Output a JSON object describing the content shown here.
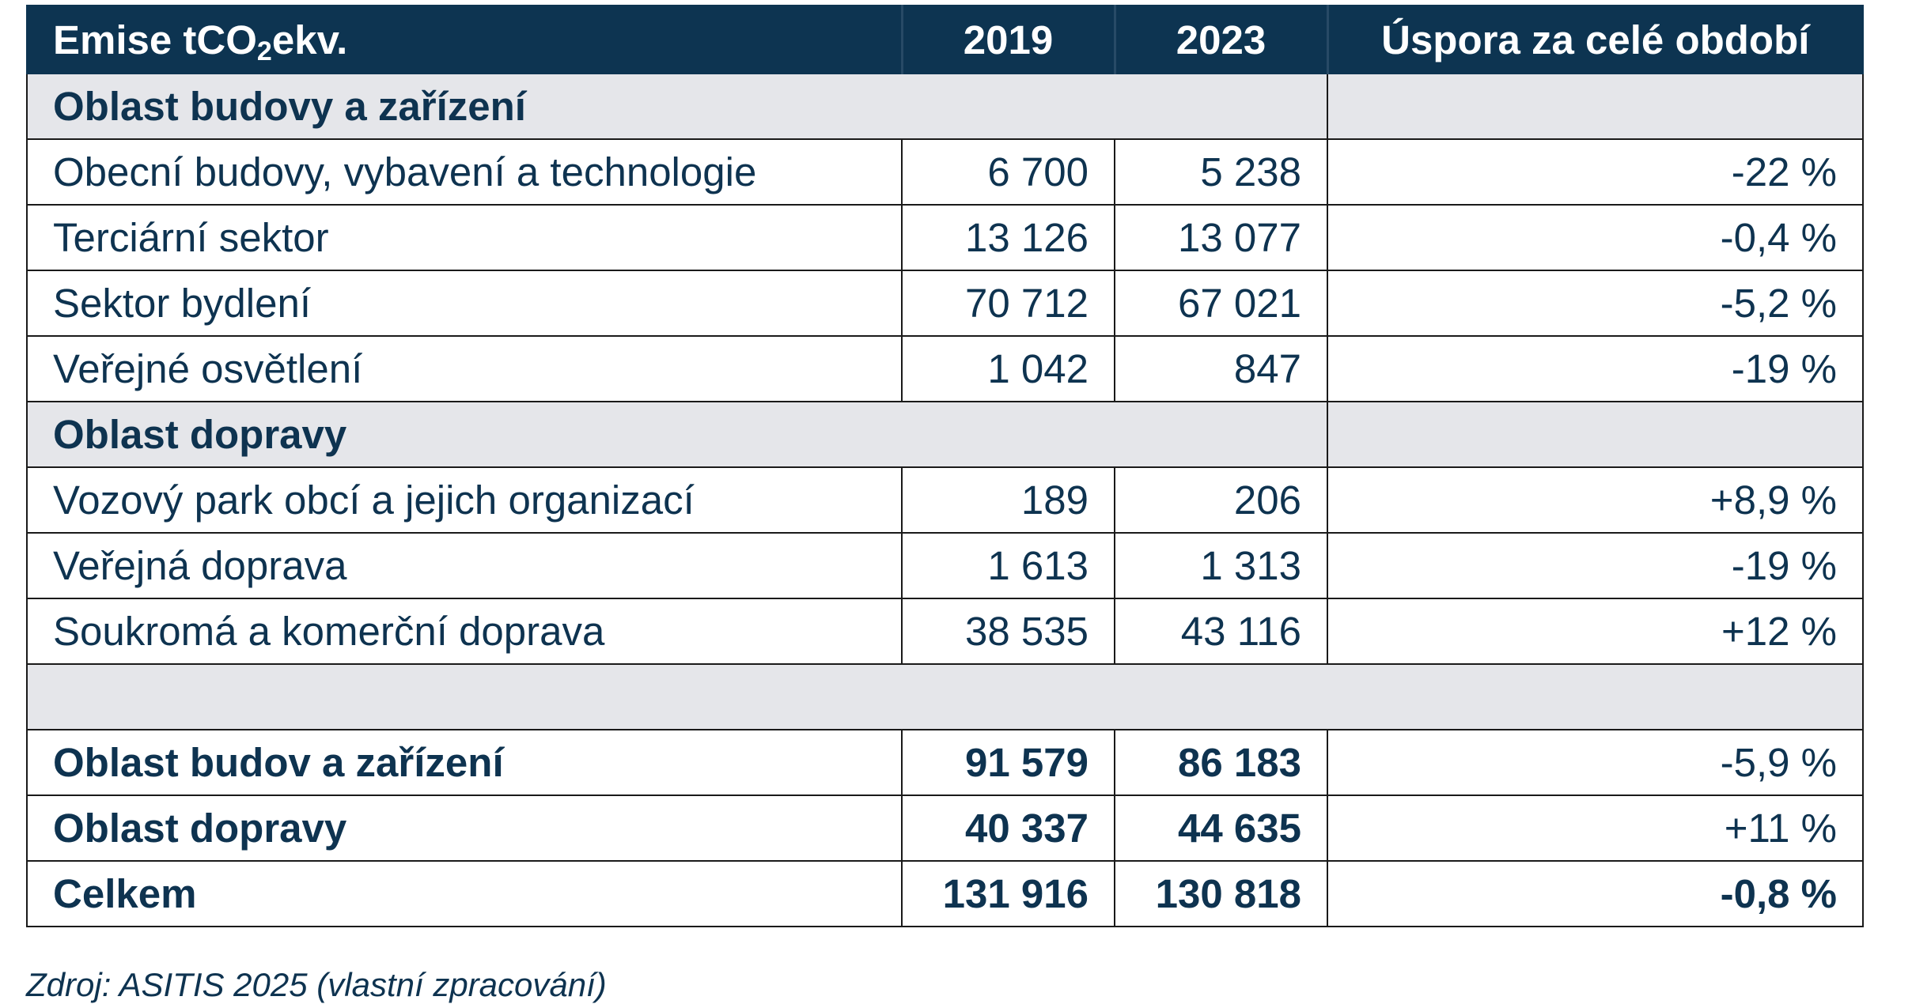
{
  "header": {
    "label_prefix": "Emise tCO",
    "label_sub": "2",
    "label_suffix": "ekv.",
    "year1": "2019",
    "year2": "2023",
    "saving": "Úspora za celé období"
  },
  "sections": [
    {
      "title": "Oblast budovy a zařízení",
      "rows": [
        {
          "label": "Obecní budovy, vybavení a technologie",
          "v2019": "6 700",
          "v2023": "5 238",
          "change": "-22 %",
          "trend": "neg"
        },
        {
          "label": "Terciární sektor",
          "v2019": "13 126",
          "v2023": "13 077",
          "change": "-0,4 %",
          "trend": "neg"
        },
        {
          "label": "Sektor bydlení",
          "v2019": "70 712",
          "v2023": "67 021",
          "change": "-5,2 %",
          "trend": "neg"
        },
        {
          "label": "Veřejné osvětlení",
          "v2019": "1 042",
          "v2023": "847",
          "change": "-19 %",
          "trend": "neg"
        }
      ]
    },
    {
      "title": "Oblast dopravy",
      "rows": [
        {
          "label": "Vozový park obcí a jejich organizací",
          "v2019": "189",
          "v2023": "206",
          "change": "+8,9 %",
          "trend": "pos"
        },
        {
          "label": "Veřejná doprava",
          "v2019": "1 613",
          "v2023": "1 313",
          "change": "-19 %",
          "trend": "neg"
        },
        {
          "label": "Soukromá a komerční doprava",
          "v2019": "38 535",
          "v2023": "43 116",
          "change": "+12 %",
          "trend": "pos"
        }
      ]
    }
  ],
  "totals": [
    {
      "label": "Oblast budov a zařízení",
      "v2019": "91 579",
      "v2023": "86 183",
      "change": "-5,9 %",
      "trend": "neg"
    },
    {
      "label": "Oblast dopravy",
      "v2019": "40 337",
      "v2023": "44 635",
      "change": "+11 %",
      "trend": "pos"
    },
    {
      "label": "Celkem",
      "v2019": "131 916",
      "v2023": "130 818",
      "change": "-0,8 %",
      "trend": "neg"
    }
  ],
  "source": "Zdroj: ASITIS 2025 (vlastní zpracování)",
  "colors": {
    "header_bg": "#0d3451",
    "text": "#0e3350",
    "section_bg": "#e5e6ea",
    "decrease": "#2ea551",
    "increase": "#e3161b"
  }
}
